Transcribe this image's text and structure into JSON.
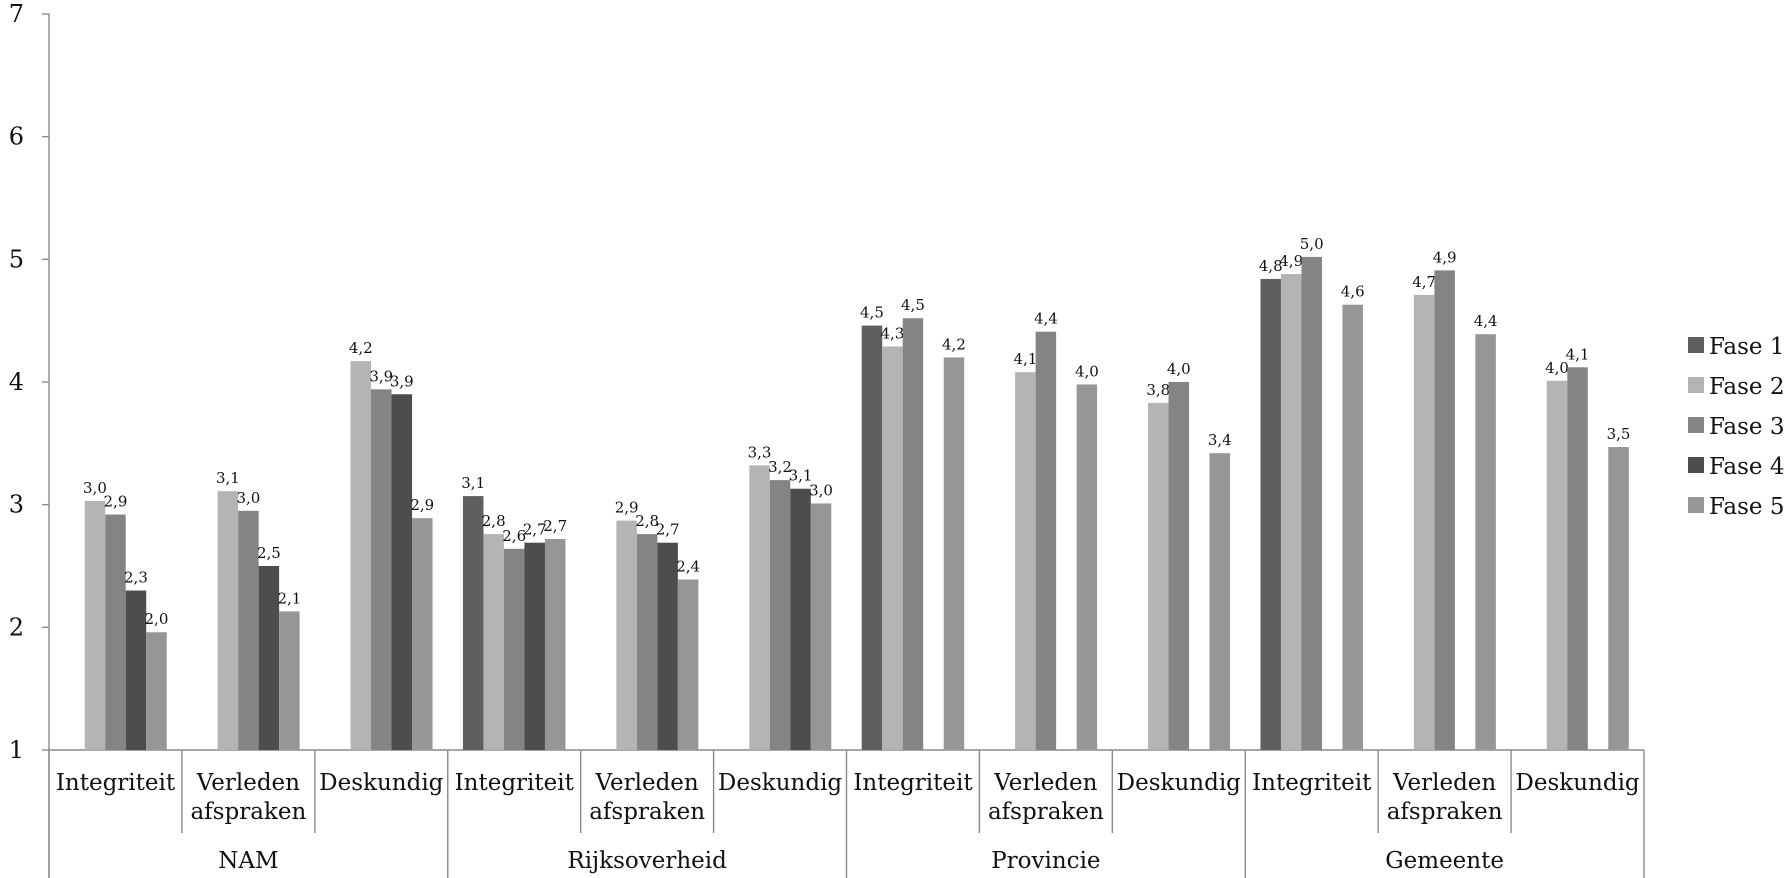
{
  "chart_data": {
    "type": "bar",
    "yticks": [
      1,
      2,
      3,
      4,
      5,
      6,
      7
    ],
    "ylim": [
      1,
      7
    ],
    "grid": false,
    "legend_position": "right",
    "groups": [
      {
        "name": "NAM",
        "categories": [
          "Integriteit",
          "Verleden afspraken",
          "Deskundig"
        ]
      },
      {
        "name": "Rijksoverheid",
        "categories": [
          "Integriteit",
          "Verleden afspraken",
          "Deskundig"
        ]
      },
      {
        "name": "Provincie",
        "categories": [
          "Integriteit",
          "Verleden afspraken",
          "Deskundig"
        ]
      },
      {
        "name": "Gemeente",
        "categories": [
          "Integriteit",
          "Verleden afspraken",
          "Deskundig"
        ]
      }
    ],
    "series": [
      {
        "name": "Fase 1",
        "color": "#5f5f5f",
        "values": [
          null,
          null,
          null,
          3.07,
          null,
          null,
          4.46,
          null,
          null,
          4.84,
          null,
          null
        ],
        "labels": [
          "",
          "",
          "",
          "3,1",
          "",
          "",
          "4,5",
          "",
          "",
          "4,8",
          "",
          ""
        ]
      },
      {
        "name": "Fase 2",
        "color": "#b4b4b4",
        "values": [
          3.03,
          3.11,
          4.17,
          2.76,
          2.87,
          3.32,
          4.29,
          4.08,
          3.83,
          4.88,
          4.71,
          4.01
        ],
        "labels": [
          "3,0",
          "3,1",
          "4,2",
          "2,8",
          "2,9",
          "3,3",
          "4,3",
          "4,1",
          "3,8",
          "4,9",
          "4,7",
          "4,0"
        ]
      },
      {
        "name": "Fase 3",
        "color": "#848484",
        "values": [
          2.92,
          2.95,
          3.94,
          2.64,
          2.76,
          3.2,
          4.52,
          4.41,
          4.0,
          5.02,
          4.91,
          4.12
        ],
        "labels": [
          "2,9",
          "3,0",
          "3,9",
          "2,6",
          "2,8",
          "3,2",
          "4,5",
          "4,4",
          "4,0",
          "5,0",
          "4,9",
          "4,1"
        ]
      },
      {
        "name": "Fase 4",
        "color": "#4d4d4d",
        "values": [
          2.3,
          2.5,
          3.9,
          2.69,
          2.69,
          3.13,
          null,
          null,
          null,
          null,
          null,
          null
        ],
        "labels": [
          "2,3",
          "2,5",
          "3,9",
          "2,7",
          "2,7",
          "3,1",
          "",
          "",
          "",
          "",
          "",
          ""
        ]
      },
      {
        "name": "Fase 5",
        "color": "#969696",
        "values": [
          1.96,
          2.13,
          2.89,
          2.72,
          2.39,
          3.01,
          4.2,
          3.98,
          3.42,
          4.63,
          4.39,
          3.47
        ],
        "labels": [
          "2,0",
          "2,1",
          "2,9",
          "2,7",
          "2,4",
          "3,0",
          "4,2",
          "4,0",
          "3,4",
          "4,6",
          "4,4",
          "3,5"
        ]
      }
    ]
  }
}
